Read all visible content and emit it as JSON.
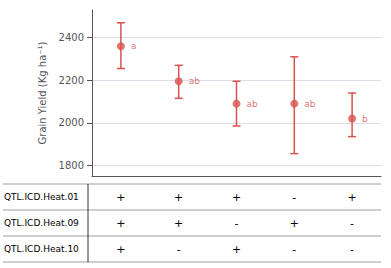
{
  "chart_data": {
    "type": "errorbar",
    "ylabel": "Grain Yield (Kg ha⁻¹)",
    "categories": [
      null,
      null,
      null,
      null,
      null
    ],
    "values": [
      2360,
      2195,
      2090,
      2090,
      2020
    ],
    "ci_upper": [
      2470,
      2270,
      2195,
      2310,
      2140
    ],
    "ci_lower": [
      2255,
      2115,
      1985,
      1855,
      1935
    ],
    "point_labels": [
      "a",
      "ab",
      "ab",
      "ab",
      "b"
    ],
    "color": "#d9534f",
    "ylim": [
      1750,
      2530
    ],
    "yticks": [
      1800,
      2000,
      2200,
      2400
    ],
    "grid": true,
    "table": {
      "rows": [
        [
          "QTL.ICD.Heat.01",
          "+",
          "+",
          "+",
          "-",
          "+"
        ],
        [
          "QTL.ICD.Heat.09",
          "+",
          "+",
          "-",
          "+",
          "-"
        ],
        [
          "QTL.ICD.Heat.10",
          "+",
          "-",
          "+",
          "-",
          "-"
        ]
      ]
    }
  }
}
